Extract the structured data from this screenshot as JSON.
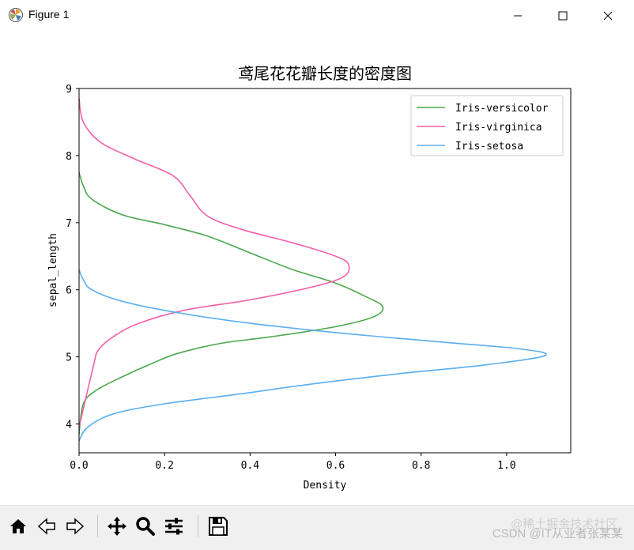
{
  "window": {
    "title": "Figure 1",
    "icon": "matplotlib-icon",
    "controls": [
      "minimize-icon",
      "maximize-icon",
      "close-icon"
    ]
  },
  "toolbar": {
    "buttons": [
      {
        "name": "home-button",
        "icon": "home-icon"
      },
      {
        "name": "back-button",
        "icon": "arrow-left-icon"
      },
      {
        "name": "forward-button",
        "icon": "arrow-right-icon"
      },
      {
        "name": "pan-button",
        "icon": "move-icon"
      },
      {
        "name": "zoom-button",
        "icon": "magnifier-icon"
      },
      {
        "name": "configure-subplots-button",
        "icon": "sliders-icon"
      },
      {
        "name": "save-button",
        "icon": "floppy-disk-icon"
      }
    ]
  },
  "watermark": {
    "text1": "@稀土掘金技术社区",
    "text2": "CSDN @IT从业者张某某"
  },
  "chart_data": {
    "type": "line",
    "title": "鸢尾花花瓣长度的密度图",
    "xlabel": "Density",
    "ylabel": "sepal_length",
    "xlim": [
      0.0,
      1.15
    ],
    "ylim": [
      3.57,
      9.0
    ],
    "xticks": [
      "0.0",
      "0.2",
      "0.4",
      "0.6",
      "0.8",
      "1.0"
    ],
    "yticks": [
      "4",
      "5",
      "6",
      "7",
      "8",
      "9"
    ],
    "grid": false,
    "legend_position": "top-right",
    "series": [
      {
        "name": "Iris-versicolor",
        "color": "#4aa84a",
        "points": [
          [
            0.0,
            3.85
          ],
          [
            0.01,
            4.3
          ],
          [
            0.04,
            4.5
          ],
          [
            0.1,
            4.7
          ],
          [
            0.17,
            4.9
          ],
          [
            0.23,
            5.05
          ],
          [
            0.33,
            5.2
          ],
          [
            0.45,
            5.3
          ],
          [
            0.6,
            5.45
          ],
          [
            0.69,
            5.6
          ],
          [
            0.71,
            5.75
          ],
          [
            0.67,
            5.9
          ],
          [
            0.6,
            6.1
          ],
          [
            0.5,
            6.3
          ],
          [
            0.4,
            6.55
          ],
          [
            0.3,
            6.8
          ],
          [
            0.2,
            6.97
          ],
          [
            0.1,
            7.12
          ],
          [
            0.03,
            7.35
          ],
          [
            0.01,
            7.55
          ],
          [
            0.0,
            7.75
          ]
        ]
      },
      {
        "name": "Iris-virginica",
        "color": "#f25fa9",
        "points": [
          [
            0.0,
            3.95
          ],
          [
            0.02,
            4.5
          ],
          [
            0.035,
            4.9
          ],
          [
            0.045,
            5.1
          ],
          [
            0.08,
            5.3
          ],
          [
            0.14,
            5.5
          ],
          [
            0.25,
            5.7
          ],
          [
            0.4,
            5.85
          ],
          [
            0.55,
            6.05
          ],
          [
            0.62,
            6.2
          ],
          [
            0.63,
            6.38
          ],
          [
            0.6,
            6.5
          ],
          [
            0.5,
            6.7
          ],
          [
            0.38,
            6.9
          ],
          [
            0.3,
            7.1
          ],
          [
            0.26,
            7.4
          ],
          [
            0.22,
            7.7
          ],
          [
            0.13,
            7.95
          ],
          [
            0.05,
            8.2
          ],
          [
            0.01,
            8.5
          ],
          [
            0.0,
            8.85
          ]
        ]
      },
      {
        "name": "Iris-setosa",
        "color": "#5aaef0",
        "points": [
          [
            0.0,
            3.75
          ],
          [
            0.02,
            3.95
          ],
          [
            0.08,
            4.15
          ],
          [
            0.2,
            4.3
          ],
          [
            0.38,
            4.45
          ],
          [
            0.55,
            4.6
          ],
          [
            0.75,
            4.75
          ],
          [
            0.95,
            4.88
          ],
          [
            1.09,
            5.02
          ],
          [
            1.03,
            5.12
          ],
          [
            0.85,
            5.22
          ],
          [
            0.62,
            5.35
          ],
          [
            0.4,
            5.5
          ],
          [
            0.22,
            5.67
          ],
          [
            0.1,
            5.83
          ],
          [
            0.03,
            6.0
          ],
          [
            0.01,
            6.15
          ],
          [
            0.0,
            6.3
          ]
        ]
      }
    ]
  }
}
